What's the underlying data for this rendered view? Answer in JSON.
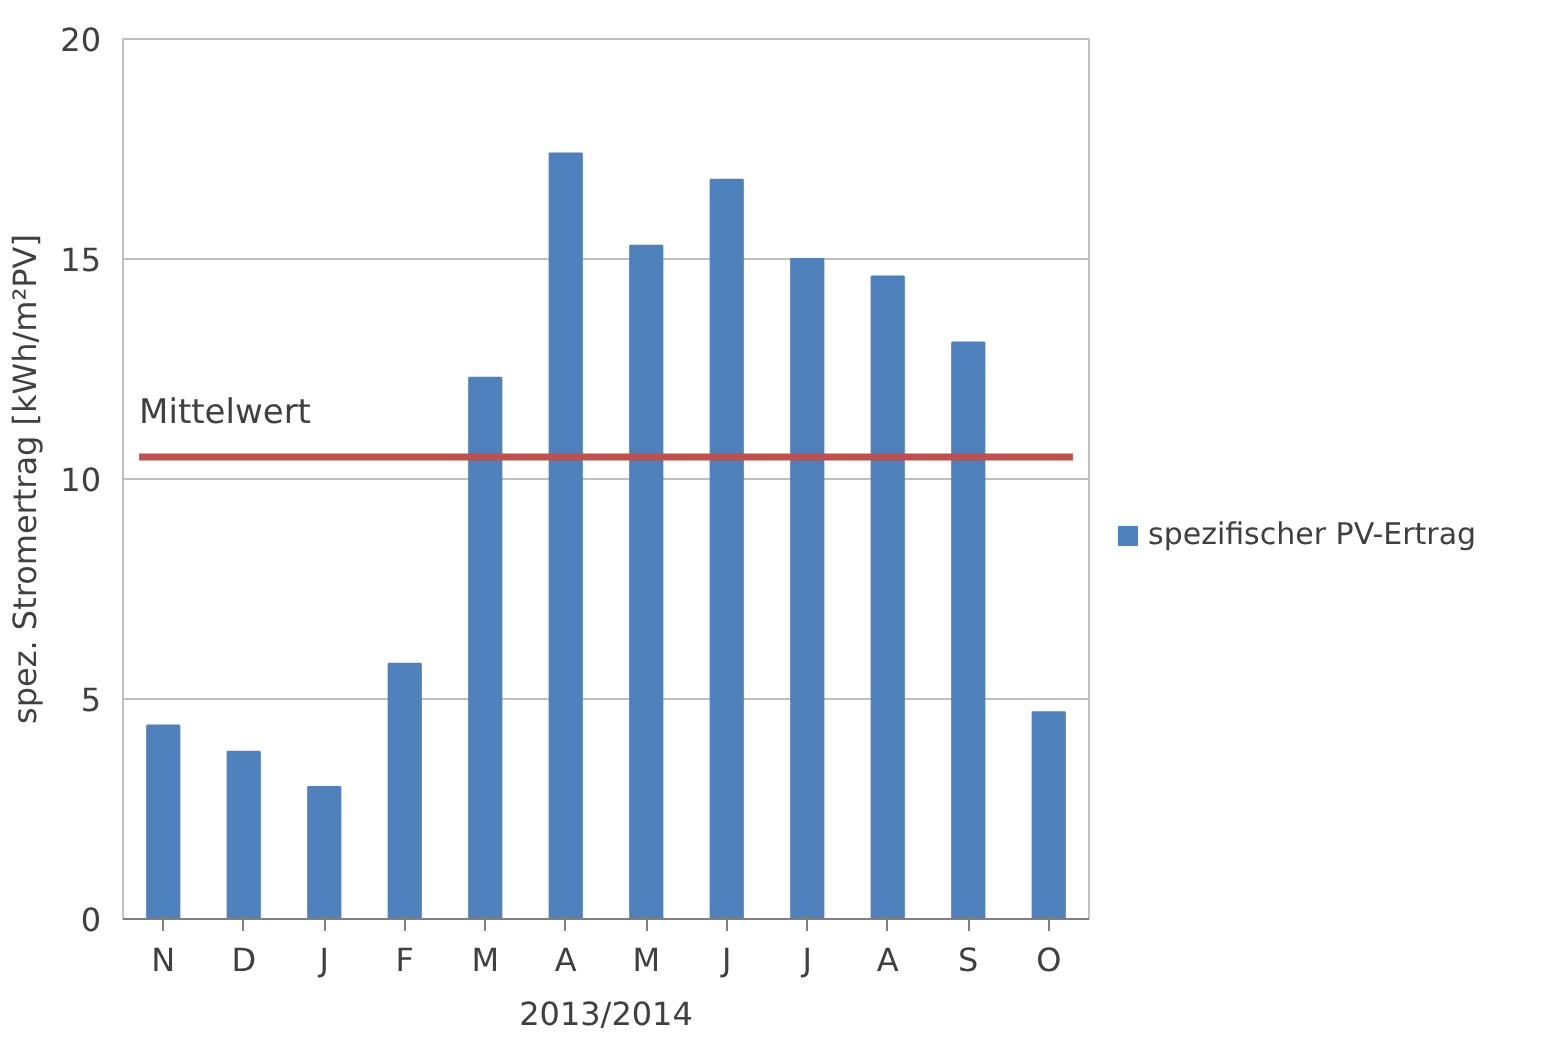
{
  "chart_data": {
    "type": "bar",
    "xlabel": "2013/2014",
    "ylabel": "spez. Stromertrag [kWh/m²PV]",
    "categories": [
      "N",
      "D",
      "J",
      "F",
      "M",
      "A",
      "M",
      "J",
      "J",
      "A",
      "S",
      "O"
    ],
    "series": [
      {
        "name": "spezifischer PV-Ertrag",
        "color": "#4f81bd",
        "values": [
          4.4,
          3.8,
          3.0,
          5.8,
          12.3,
          17.4,
          15.3,
          16.8,
          15.0,
          14.6,
          13.1,
          4.7
        ]
      }
    ],
    "ylim": [
      0,
      20
    ],
    "yticks": [
      0,
      5,
      10,
      15,
      20
    ],
    "grid": "y",
    "legend": "right",
    "ref_lines": [
      {
        "axis": "y",
        "value": 10.5,
        "label": "Mittelwert",
        "color": "#c0504d"
      }
    ]
  }
}
